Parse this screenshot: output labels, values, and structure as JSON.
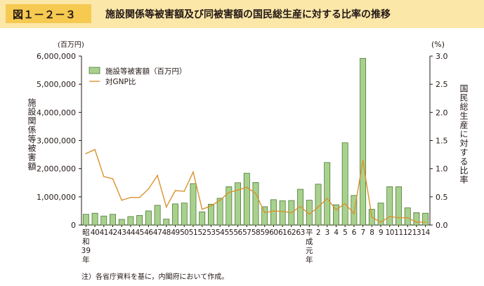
{
  "header": {
    "figure_number": "図１－２－３",
    "title": "施設関係等被害額及び同被害額の国民総生産に対する比率の推移"
  },
  "chart_data": {
    "type": "bar",
    "title": "施設関係等被害額及び同被害額の国民総生産に対する比率の推移",
    "categories": [
      "39",
      "40",
      "41",
      "42",
      "43",
      "44",
      "45",
      "46",
      "47",
      "48",
      "49",
      "50",
      "51",
      "52",
      "53",
      "54",
      "55",
      "56",
      "57",
      "58",
      "59",
      "60",
      "61",
      "62",
      "63",
      "元",
      "2",
      "3",
      "4",
      "5",
      "6",
      "7",
      "8",
      "9",
      "10",
      "11",
      "12",
      "13",
      "14"
    ],
    "tick_labels": [
      "昭和39年",
      "40",
      "41",
      "42",
      "43",
      "44",
      "45",
      "46",
      "47",
      "48",
      "49",
      "50",
      "51",
      "52",
      "53",
      "54",
      "55",
      "56",
      "57",
      "58",
      "59",
      "60",
      "61",
      "62",
      "63",
      "平成元年",
      "2",
      "3",
      "4",
      "5",
      "6",
      "7",
      "8",
      "9",
      "10",
      "11",
      "12",
      "13",
      "14"
    ],
    "era_label_showa": [
      "昭",
      "和",
      "39",
      "年"
    ],
    "era_label_heisei": [
      "平",
      "成",
      "元",
      "年"
    ],
    "left_axis": {
      "unit": "(百万円)",
      "label": "施設関係等被害額",
      "ylim": [
        0,
        6000000
      ],
      "ticks": [
        "0",
        "1,000,000",
        "2,000,000",
        "3,000,000",
        "4,000,000",
        "5,000,000",
        "6,000,000"
      ]
    },
    "right_axis": {
      "unit": "(%)",
      "label": "国民総生産に対する比率",
      "ylim": [
        0,
        3.0
      ],
      "ticks": [
        "0.0",
        "0.5",
        "1.0",
        "1.5",
        "2.0",
        "2.5",
        "3.0"
      ]
    },
    "series": [
      {
        "name": "施設等被害額（百万円）",
        "type": "bar",
        "axis": "left",
        "color": "#a9d18e",
        "stroke": "#3a6b21",
        "values": [
          380000,
          420000,
          320000,
          380000,
          200000,
          300000,
          340000,
          500000,
          700000,
          210000,
          750000,
          780000,
          1470000,
          470000,
          740000,
          950000,
          1360000,
          1500000,
          1840000,
          1510000,
          650000,
          900000,
          860000,
          870000,
          1270000,
          880000,
          1450000,
          2220000,
          720000,
          2920000,
          1050000,
          5920000,
          560000,
          780000,
          1360000,
          1360000,
          610000,
          440000,
          420000
        ]
      },
      {
        "name": "対GNP比",
        "type": "line",
        "axis": "right",
        "color": "#d9932d",
        "values": [
          1.27,
          1.34,
          0.86,
          0.82,
          0.44,
          0.49,
          0.49,
          0.64,
          0.88,
          0.32,
          0.61,
          0.6,
          0.94,
          0.28,
          0.34,
          0.44,
          0.58,
          0.62,
          0.67,
          0.56,
          0.22,
          0.25,
          0.24,
          0.22,
          0.33,
          0.19,
          0.32,
          0.47,
          0.27,
          0.38,
          0.2,
          1.15,
          0.14,
          0.05,
          0.15,
          0.13,
          0.13,
          0.05,
          0.05
        ]
      }
    ],
    "legend": {
      "position": "top-left"
    },
    "grid": false
  },
  "note": "注）各省庁資料を基に，内閣府において作成。"
}
